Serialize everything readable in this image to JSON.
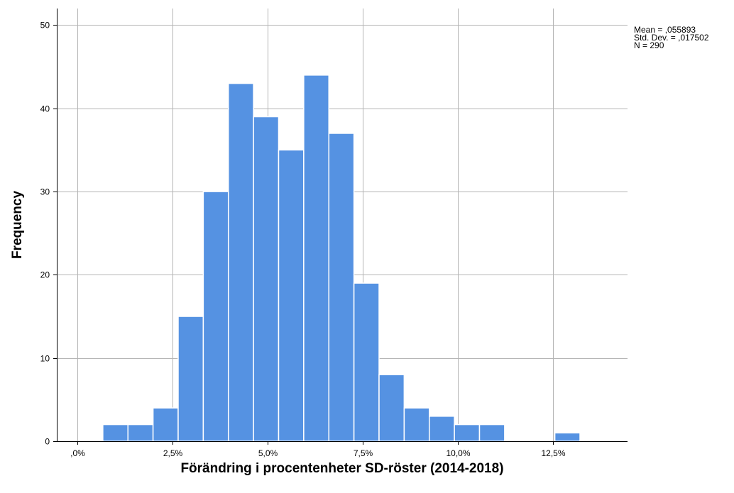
{
  "chart_data": {
    "type": "bar",
    "title": "",
    "xlabel": "Förändring i procentenheter SD-röster (2014-2018)",
    "ylabel": "Frequency",
    "bin_width": 0.0066,
    "bins": [
      {
        "start": 0.0066,
        "end": 0.0132,
        "count": 2
      },
      {
        "start": 0.0132,
        "end": 0.0198,
        "count": 2
      },
      {
        "start": 0.0198,
        "end": 0.0264,
        "count": 4
      },
      {
        "start": 0.0264,
        "end": 0.033,
        "count": 15
      },
      {
        "start": 0.033,
        "end": 0.0396,
        "count": 30
      },
      {
        "start": 0.0396,
        "end": 0.0462,
        "count": 43
      },
      {
        "start": 0.0462,
        "end": 0.0528,
        "count": 39
      },
      {
        "start": 0.0528,
        "end": 0.0594,
        "count": 35
      },
      {
        "start": 0.0594,
        "end": 0.066,
        "count": 44
      },
      {
        "start": 0.066,
        "end": 0.0726,
        "count": 37
      },
      {
        "start": 0.0726,
        "end": 0.0792,
        "count": 19
      },
      {
        "start": 0.0792,
        "end": 0.0858,
        "count": 8
      },
      {
        "start": 0.0858,
        "end": 0.0924,
        "count": 4
      },
      {
        "start": 0.0924,
        "end": 0.099,
        "count": 3
      },
      {
        "start": 0.099,
        "end": 0.1056,
        "count": 2
      },
      {
        "start": 0.1056,
        "end": 0.1122,
        "count": 2
      },
      {
        "start": 0.1122,
        "end": 0.1188,
        "count": 0
      },
      {
        "start": 0.1188,
        "end": 0.1254,
        "count": 0
      },
      {
        "start": 0.1254,
        "end": 0.132,
        "count": 1
      }
    ],
    "xlim": [
      -0.0055,
      0.1445
    ],
    "ylim": [
      0,
      52
    ],
    "x_ticks": [
      {
        "value": 0.0,
        "label": ",0%"
      },
      {
        "value": 0.025,
        "label": "2,5%"
      },
      {
        "value": 0.05,
        "label": "5,0%"
      },
      {
        "value": 0.075,
        "label": "7,5%"
      },
      {
        "value": 0.1,
        "label": "10,0%"
      },
      {
        "value": 0.125,
        "label": "12,5%"
      }
    ],
    "y_ticks": [
      {
        "value": 0,
        "label": "0"
      },
      {
        "value": 10,
        "label": "10"
      },
      {
        "value": 20,
        "label": "20"
      },
      {
        "value": 30,
        "label": "30"
      },
      {
        "value": 40,
        "label": "40"
      },
      {
        "value": 50,
        "label": "50"
      }
    ],
    "grid": true,
    "bar_color": "#5592e2",
    "stats": {
      "mean": "Mean = ,055893",
      "std": "Std. Dev. = ,017502",
      "n": "N = 290"
    },
    "legend": "none"
  }
}
